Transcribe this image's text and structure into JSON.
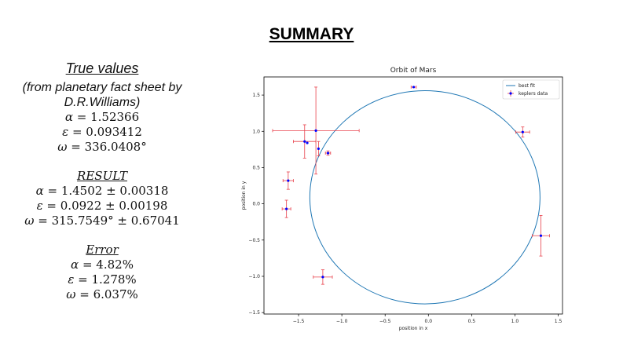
{
  "slide": {
    "title": "SUMMARY"
  },
  "true_values": {
    "heading": "True values",
    "source": "(from planetary fact sheet by D.R.Williams)",
    "alpha": {
      "symbol": "α",
      "value": "1.52366"
    },
    "epsilon": {
      "symbol": "ε",
      "value": "0.093412"
    },
    "omega": {
      "symbol": "ω",
      "value": "336.0408°"
    }
  },
  "result": {
    "heading": "RESULT",
    "alpha": {
      "symbol": "α",
      "value": "1.4502 ± 0.00318"
    },
    "epsilon": {
      "symbol": "ε",
      "value": "0.0922 ± 0.00198"
    },
    "omega": {
      "symbol": "ω",
      "value": "315.7549° ± 0.67041"
    }
  },
  "error": {
    "heading": "Error",
    "alpha": {
      "symbol": "α",
      "value": "4.82%"
    },
    "epsilon": {
      "symbol": "ε",
      "value": "1.278%"
    },
    "omega": {
      "symbol": "ω",
      "value": "6.037%"
    }
  },
  "chart_data": {
    "type": "scatter",
    "title": "Orbit of Mars",
    "xlabel": "position in x",
    "ylabel": "position in y",
    "xlim": [
      -1.9,
      1.55
    ],
    "ylim": [
      -1.52,
      1.75
    ],
    "xticks": [
      -1.5,
      -1.0,
      -0.5,
      0.0,
      0.5,
      1.0,
      1.5
    ],
    "yticks": [
      -1.5,
      -1.0,
      -0.5,
      0.0,
      0.5,
      1.0,
      1.5
    ],
    "xtick_labels": [
      "−1.5",
      "−1.0",
      "−0.5",
      "0.0",
      "0.5",
      "1.0",
      "1.5"
    ],
    "ytick_labels": [
      "−1.5",
      "−1.0",
      "−0.5",
      "0.0",
      "0.5",
      "1.0",
      "1.5"
    ],
    "legend_position": "top-right",
    "grid": false,
    "series": [
      {
        "name": "best fit",
        "kind": "ellipse",
        "color": "#1f77b4",
        "center": [
          -0.04,
          0.09
        ],
        "semi_axes": [
          1.33,
          1.47
        ]
      },
      {
        "name": "keplers data",
        "kind": "errorbar-points",
        "marker_color": "#0000ff",
        "errorbar_color": "#e8404b",
        "points": [
          {
            "x": -0.17,
            "y": 1.61,
            "xerr": 0.03,
            "yerr": 0.0
          },
          {
            "x": -1.3,
            "y": 1.01,
            "xerr": 0.5,
            "yerr": 0.6
          },
          {
            "x": -1.43,
            "y": 0.86,
            "xerr": 0.13,
            "yerr": 0.23
          },
          {
            "x": -1.4,
            "y": 0.84,
            "xerr": 0.0,
            "yerr": 0.0
          },
          {
            "x": -1.27,
            "y": 0.76,
            "xerr": 0.0,
            "yerr": 0.1
          },
          {
            "x": -1.16,
            "y": 0.7,
            "xerr": 0.03,
            "yerr": 0.03
          },
          {
            "x": -1.62,
            "y": 0.32,
            "xerr": 0.06,
            "yerr": 0.12
          },
          {
            "x": -1.64,
            "y": -0.07,
            "xerr": 0.05,
            "yerr": 0.12
          },
          {
            "x": -1.22,
            "y": -1.01,
            "xerr": 0.11,
            "yerr": 0.1
          },
          {
            "x": 1.09,
            "y": 0.99,
            "xerr": 0.08,
            "yerr": 0.07
          },
          {
            "x": 1.3,
            "y": -0.44,
            "xerr": 0.1,
            "yerr": 0.28
          }
        ]
      }
    ]
  }
}
